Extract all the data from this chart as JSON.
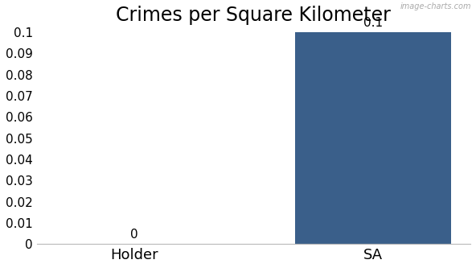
{
  "title": "Crimes per Square Kilometer",
  "categories": [
    "Holder",
    "SA"
  ],
  "values": [
    0.0,
    0.1
  ],
  "bar_colors": [
    "#3a5f8a",
    "#3a5f8a"
  ],
  "ylim": [
    0,
    0.1
  ],
  "yticks": [
    0,
    0.01,
    0.02,
    0.03,
    0.04,
    0.05,
    0.06,
    0.07,
    0.08,
    0.09,
    0.1
  ],
  "bar_labels": [
    "0",
    "0.1"
  ],
  "title_fontsize": 17,
  "label_fontsize": 13,
  "tick_fontsize": 11,
  "background_color": "#ffffff",
  "watermark": "image-charts.com"
}
